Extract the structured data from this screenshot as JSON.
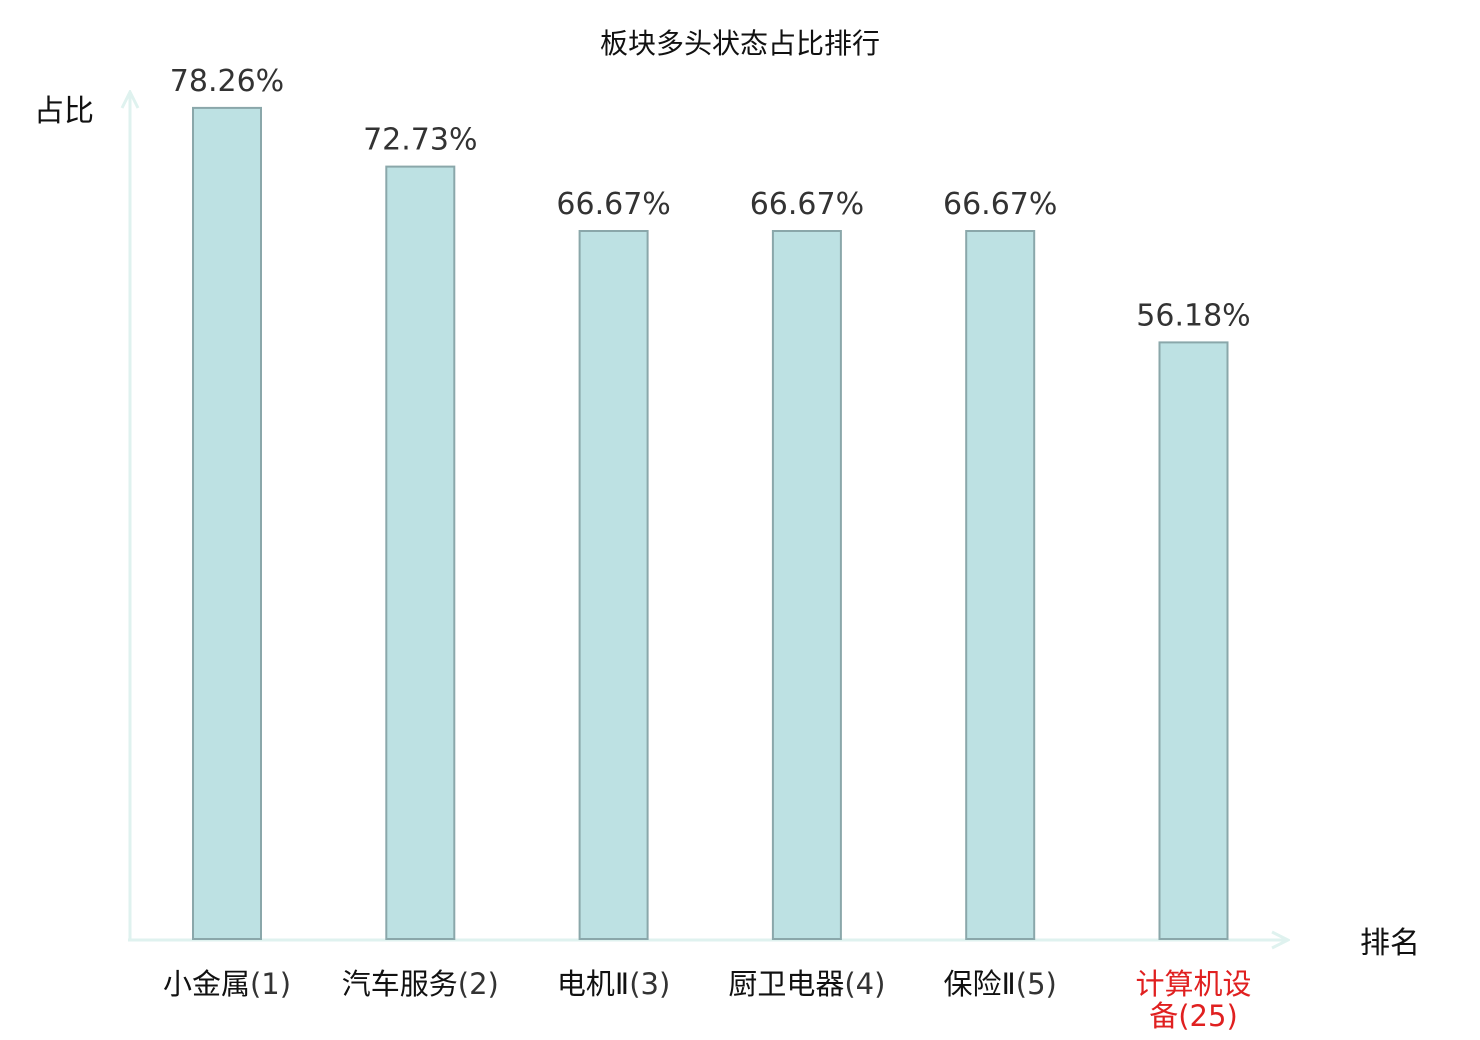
{
  "chart_data": {
    "type": "bar",
    "title": "板块多头状态占比排行",
    "xlabel": "排名",
    "ylabel": "占比",
    "categories": [
      {
        "name": "小金属",
        "rank": "(1)"
      },
      {
        "name": "汽车服务",
        "rank": "(2)"
      },
      {
        "name": "电机Ⅱ",
        "rank": "(3)"
      },
      {
        "name": "厨卫电器",
        "rank": "(4)"
      },
      {
        "name": "保险Ⅱ",
        "rank": "(5)"
      },
      {
        "name": "计算机设备",
        "rank": "(25)",
        "highlight": true
      }
    ],
    "values": [
      78.26,
      72.73,
      66.67,
      66.67,
      66.67,
      56.18
    ],
    "value_labels": [
      "78.26%",
      "72.73%",
      "66.67%",
      "66.67%",
      "66.67%",
      "56.18%"
    ],
    "ylim": [
      0,
      100
    ],
    "grid": false,
    "legend": "none",
    "colors": {
      "bar_fill": "#bde1e3",
      "bar_stroke": "#8aa7aa",
      "axis": "#dff2ef",
      "highlight_label": "#e02020",
      "normal_label": "#111111",
      "rank_label": "#333333"
    }
  }
}
